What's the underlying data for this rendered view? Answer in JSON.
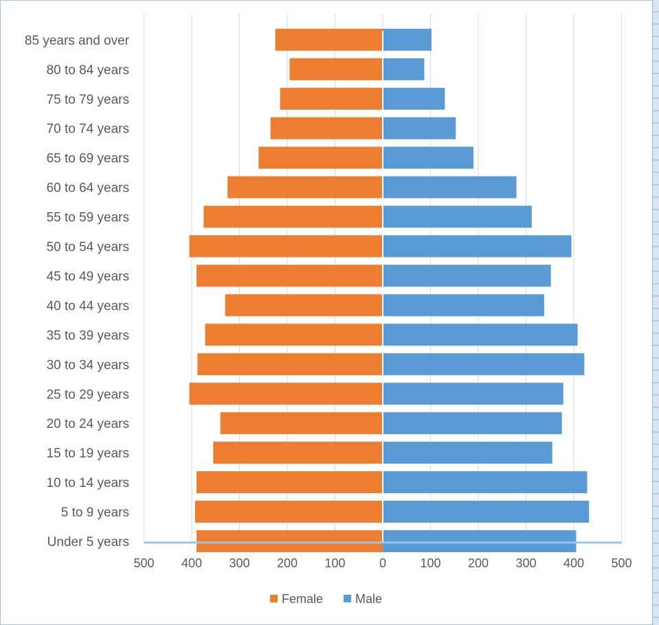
{
  "chart_data": {
    "type": "bar",
    "orientation": "horizontal",
    "subtype": "population-pyramid",
    "title": "",
    "xlabel": "",
    "ylabel": "",
    "xlim": [
      -500,
      500
    ],
    "x_ticks": [
      500,
      400,
      300,
      200,
      100,
      0,
      100,
      200,
      300,
      400,
      500
    ],
    "gridlines": true,
    "legend_position": "bottom",
    "categories": [
      "Under 5 years",
      "5 to 9 years",
      "10 to 14 years",
      "15 to 19 years",
      "20 to 24 years",
      "25 to 29 years",
      "30 to 34 years",
      "35 to 39 years",
      "40 to 44 years",
      "45 to 49 years",
      "50 to 54 years",
      "55 to 59 years",
      "60 to 64 years",
      "65 to 69 years",
      "70 to 74 years",
      "75 to 79 years",
      "80 to 84 years",
      "85 years and over"
    ],
    "series": [
      {
        "name": "Female",
        "color": "#ed7d31",
        "values": [
          390,
          393,
          390,
          355,
          340,
          405,
          388,
          372,
          330,
          390,
          405,
          375,
          325,
          260,
          235,
          215,
          195,
          225
        ]
      },
      {
        "name": "Male",
        "color": "#5b9bd5",
        "values": [
          405,
          432,
          428,
          355,
          375,
          378,
          422,
          408,
          338,
          352,
          395,
          312,
          280,
          190,
          153,
          130,
          87,
          102
        ]
      }
    ]
  }
}
